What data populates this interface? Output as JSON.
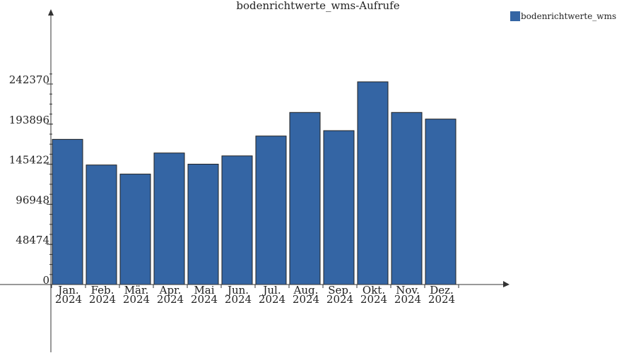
{
  "chart_data": {
    "type": "bar",
    "title": "bodenrichtwerte_wms-Aufrufe",
    "categories": [
      [
        "Jan.",
        "2024"
      ],
      [
        "Feb.",
        "2024"
      ],
      [
        "Mär.",
        "2024"
      ],
      [
        "Apr.",
        "2024"
      ],
      [
        "Mai",
        "2024"
      ],
      [
        "Jun.",
        "2024"
      ],
      [
        "Jul.",
        "2024"
      ],
      [
        "Aug.",
        "2024"
      ],
      [
        "Sep.",
        "2024"
      ],
      [
        "Okt.",
        "2024"
      ],
      [
        "Nov.",
        "2024"
      ],
      [
        "Dez.",
        "2024"
      ]
    ],
    "series": [
      {
        "name": "bodenrichtwerte_wms",
        "color": "#3465a4",
        "values": [
          175500,
          144500,
          133500,
          159000,
          145500,
          155500,
          179500,
          208000,
          186000,
          245000,
          208000,
          200000
        ]
      }
    ],
    "yticks": [
      0,
      48474,
      96948,
      145422,
      193896,
      242370
    ],
    "ylim": [
      0,
      242370
    ],
    "legend_position": "top-right",
    "grid": false
  }
}
